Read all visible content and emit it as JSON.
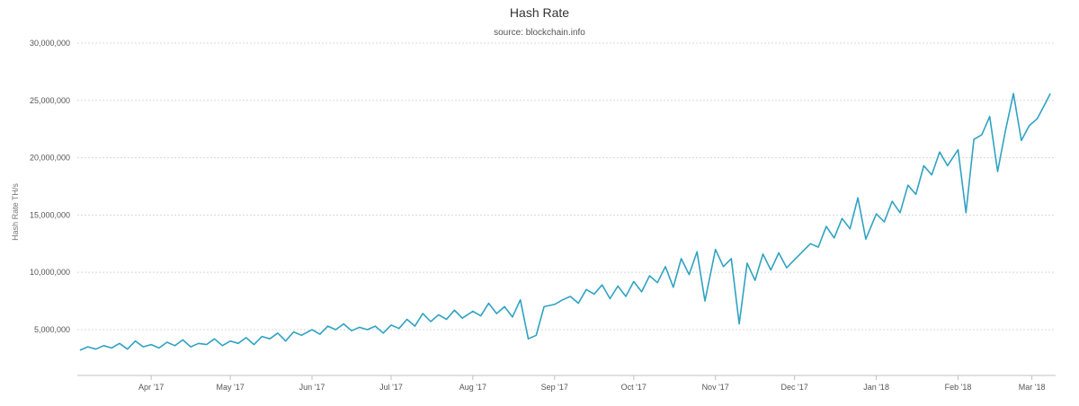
{
  "chart_data": {
    "type": "line",
    "title": "Hash Rate",
    "subtitle": "source: blockchain.info",
    "xlabel": "",
    "ylabel": "Hash Rate TH/s",
    "ylim": [
      1000000,
      30000000
    ],
    "xlim": [
      "2017-03-04",
      "2018-03-10"
    ],
    "grid": true,
    "legend": "none",
    "y_ticks": [
      {
        "value": 5000000,
        "label": "5,000,000"
      },
      {
        "value": 10000000,
        "label": "10,000,000"
      },
      {
        "value": 15000000,
        "label": "15,000,000"
      },
      {
        "value": 20000000,
        "label": "20,000,000"
      },
      {
        "value": 25000000,
        "label": "25,000,000"
      },
      {
        "value": 30000000,
        "label": "30,000,000"
      }
    ],
    "x_ticks": [
      {
        "date": "2017-04-01",
        "label": "Apr '17"
      },
      {
        "date": "2017-05-01",
        "label": "May '17"
      },
      {
        "date": "2017-06-01",
        "label": "Jun '17"
      },
      {
        "date": "2017-07-01",
        "label": "Jul '17"
      },
      {
        "date": "2017-08-01",
        "label": "Aug '17"
      },
      {
        "date": "2017-09-01",
        "label": "Sep '17"
      },
      {
        "date": "2017-10-01",
        "label": "Oct '17"
      },
      {
        "date": "2017-11-01",
        "label": "Nov '17"
      },
      {
        "date": "2017-12-01",
        "label": "Dec '17"
      },
      {
        "date": "2018-01-01",
        "label": "Jan '18"
      },
      {
        "date": "2018-02-01",
        "label": "Feb '18"
      },
      {
        "date": "2018-03-01",
        "label": "Mar '18"
      }
    ],
    "series": [
      {
        "color": "#2fa3c2",
        "x": [
          "2017-03-05",
          "2017-03-08",
          "2017-03-11",
          "2017-03-14",
          "2017-03-17",
          "2017-03-20",
          "2017-03-23",
          "2017-03-26",
          "2017-03-29",
          "2017-04-01",
          "2017-04-04",
          "2017-04-07",
          "2017-04-10",
          "2017-04-13",
          "2017-04-16",
          "2017-04-19",
          "2017-04-22",
          "2017-04-25",
          "2017-04-28",
          "2017-05-01",
          "2017-05-04",
          "2017-05-07",
          "2017-05-10",
          "2017-05-13",
          "2017-05-16",
          "2017-05-19",
          "2017-05-22",
          "2017-05-25",
          "2017-05-28",
          "2017-06-01",
          "2017-06-04",
          "2017-06-07",
          "2017-06-10",
          "2017-06-13",
          "2017-06-16",
          "2017-06-19",
          "2017-06-22",
          "2017-06-25",
          "2017-06-28",
          "2017-07-01",
          "2017-07-04",
          "2017-07-07",
          "2017-07-10",
          "2017-07-13",
          "2017-07-16",
          "2017-07-19",
          "2017-07-22",
          "2017-07-25",
          "2017-07-28",
          "2017-08-01",
          "2017-08-04",
          "2017-08-07",
          "2017-08-10",
          "2017-08-13",
          "2017-08-16",
          "2017-08-19",
          "2017-08-22",
          "2017-08-25",
          "2017-08-28",
          "2017-09-01",
          "2017-09-04",
          "2017-09-07",
          "2017-09-10",
          "2017-09-13",
          "2017-09-16",
          "2017-09-19",
          "2017-09-22",
          "2017-09-25",
          "2017-09-28",
          "2017-10-01",
          "2017-10-04",
          "2017-10-07",
          "2017-10-10",
          "2017-10-13",
          "2017-10-16",
          "2017-10-19",
          "2017-10-22",
          "2017-10-25",
          "2017-10-28",
          "2017-11-01",
          "2017-11-04",
          "2017-11-07",
          "2017-11-10",
          "2017-11-13",
          "2017-11-16",
          "2017-11-19",
          "2017-11-22",
          "2017-11-25",
          "2017-11-28",
          "2017-12-01",
          "2017-12-04",
          "2017-12-07",
          "2017-12-10",
          "2017-12-13",
          "2017-12-16",
          "2017-12-19",
          "2017-12-22",
          "2017-12-25",
          "2017-12-28",
          "2018-01-01",
          "2018-01-04",
          "2018-01-07",
          "2018-01-10",
          "2018-01-13",
          "2018-01-16",
          "2018-01-19",
          "2018-01-22",
          "2018-01-25",
          "2018-01-28",
          "2018-02-01",
          "2018-02-04",
          "2018-02-07",
          "2018-02-10",
          "2018-02-13",
          "2018-02-16",
          "2018-02-19",
          "2018-02-22",
          "2018-02-25",
          "2018-02-28",
          "2018-03-03",
          "2018-03-06",
          "2018-03-08"
        ],
        "values": [
          3200000,
          3500000,
          3300000,
          3600000,
          3400000,
          3800000,
          3300000,
          4000000,
          3500000,
          3700000,
          3400000,
          3900000,
          3600000,
          4100000,
          3500000,
          3800000,
          3700000,
          4200000,
          3600000,
          4000000,
          3800000,
          4300000,
          3700000,
          4400000,
          4200000,
          4700000,
          4000000,
          4800000,
          4500000,
          5000000,
          4600000,
          5300000,
          5000000,
          5500000,
          4900000,
          5200000,
          5000000,
          5300000,
          4700000,
          5400000,
          5100000,
          5900000,
          5300000,
          6400000,
          5700000,
          6300000,
          5900000,
          6700000,
          6000000,
          6600000,
          6200000,
          7300000,
          6400000,
          7000000,
          6100000,
          7600000,
          4200000,
          4500000,
          7000000,
          7200000,
          7600000,
          7900000,
          7300000,
          8500000,
          8100000,
          8900000,
          7700000,
          8800000,
          7900000,
          9200000,
          8300000,
          9700000,
          9100000,
          10500000,
          8700000,
          11200000,
          9800000,
          11800000,
          7500000,
          12000000,
          10500000,
          11200000,
          5500000,
          10800000,
          9300000,
          11600000,
          10200000,
          11700000,
          10400000,
          11100000,
          11800000,
          12500000,
          12200000,
          14000000,
          13000000,
          14700000,
          13800000,
          16500000,
          12900000,
          15100000,
          14400000,
          16200000,
          15200000,
          17600000,
          16800000,
          19300000,
          18500000,
          20500000,
          19300000,
          20700000,
          15200000,
          21600000,
          22000000,
          23600000,
          18800000,
          22400000,
          25600000,
          21500000,
          22800000,
          23400000,
          24700000,
          25600000
        ]
      }
    ]
  }
}
